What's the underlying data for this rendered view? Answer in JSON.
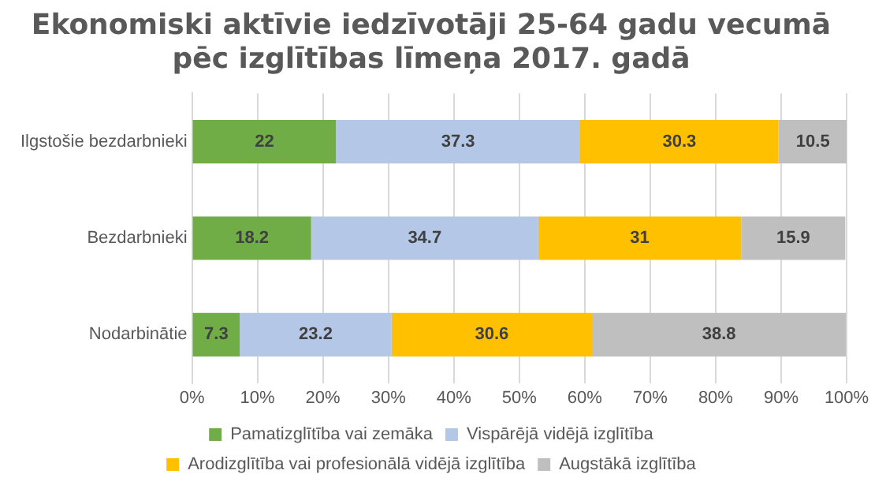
{
  "chart_data": {
    "type": "bar",
    "orientation": "horizontal",
    "stacked": true,
    "title": "Ekonomiski aktīvie iedzīvotāji 25-64 gadu vecumā\npēc izglītības līmeņa 2017. gadā",
    "categories": [
      "Ilgstošie bezdarbnieki",
      "Bezdarbnieki",
      "Nodarbinātie"
    ],
    "series": [
      {
        "name": "Pamatizglītība vai zemāka",
        "color": "#70ad47",
        "values": [
          22,
          18.2,
          7.3
        ]
      },
      {
        "name": "Vispārējā vidējā izglītība",
        "color": "#b4c7e7",
        "values": [
          37.3,
          34.7,
          23.2
        ]
      },
      {
        "name": "Arodizglītība vai profesionālā vidējā izglītība",
        "color": "#ffc000",
        "values": [
          30.3,
          31,
          30.6
        ]
      },
      {
        "name": "Augstākā izglītība",
        "color": "#bfbfbf",
        "values": [
          10.5,
          15.9,
          38.8
        ]
      }
    ],
    "xlim": [
      0,
      100
    ],
    "xticks": [
      {
        "value": 0,
        "label": "0%"
      },
      {
        "value": 10,
        "label": "10%"
      },
      {
        "value": 20,
        "label": "20%"
      },
      {
        "value": 30,
        "label": "30%"
      },
      {
        "value": 40,
        "label": "40%"
      },
      {
        "value": 50,
        "label": "50%"
      },
      {
        "value": 60,
        "label": "60%"
      },
      {
        "value": 70,
        "label": "70%"
      },
      {
        "value": 80,
        "label": "80%"
      },
      {
        "value": 90,
        "label": "90%"
      },
      {
        "value": 100,
        "label": "100%"
      }
    ],
    "grid": "x",
    "legend": "bottom",
    "data_labels": true
  }
}
